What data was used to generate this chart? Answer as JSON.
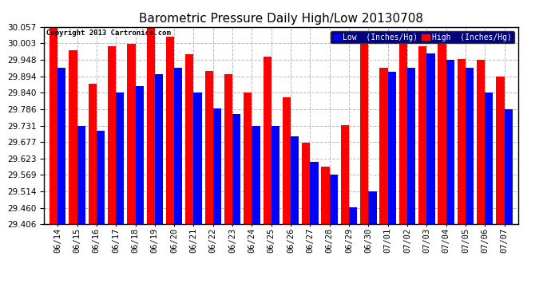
{
  "title": "Barometric Pressure Daily High/Low 20130708",
  "copyright": "Copyright 2013 Cartronics.com",
  "legend_low": "Low  (Inches/Hg)",
  "legend_high": "High  (Inches/Hg)",
  "categories": [
    "06/14",
    "06/15",
    "06/16",
    "06/17",
    "06/18",
    "06/19",
    "06/20",
    "06/21",
    "06/22",
    "06/23",
    "06/24",
    "06/25",
    "06/26",
    "06/27",
    "06/28",
    "06/29",
    "06/30",
    "07/01",
    "07/02",
    "07/03",
    "07/04",
    "07/05",
    "07/06",
    "07/07"
  ],
  "high_values": [
    30.057,
    29.98,
    29.87,
    29.994,
    30.0,
    30.057,
    30.025,
    29.968,
    29.912,
    29.9,
    29.84,
    29.96,
    29.825,
    29.675,
    29.595,
    29.733,
    30.01,
    29.922,
    30.012,
    29.994,
    30.003,
    29.95,
    29.948,
    29.894
  ],
  "low_values": [
    29.921,
    29.731,
    29.714,
    29.841,
    29.862,
    29.9,
    29.921,
    29.841,
    29.788,
    29.769,
    29.731,
    29.731,
    29.696,
    29.612,
    29.569,
    29.461,
    29.515,
    29.91,
    29.921,
    29.969,
    29.948,
    29.921,
    29.841,
    29.786
  ],
  "ylim": [
    29.406,
    30.057
  ],
  "yticks": [
    29.406,
    29.46,
    29.514,
    29.569,
    29.623,
    29.677,
    29.731,
    29.786,
    29.84,
    29.894,
    29.948,
    30.003,
    30.057
  ],
  "bar_color_high": "#FF0000",
  "bar_color_low": "#0000FF",
  "bg_color": "#FFFFFF",
  "grid_color": "#AAAAAA",
  "title_fontsize": 11,
  "tick_fontsize": 7.5
}
